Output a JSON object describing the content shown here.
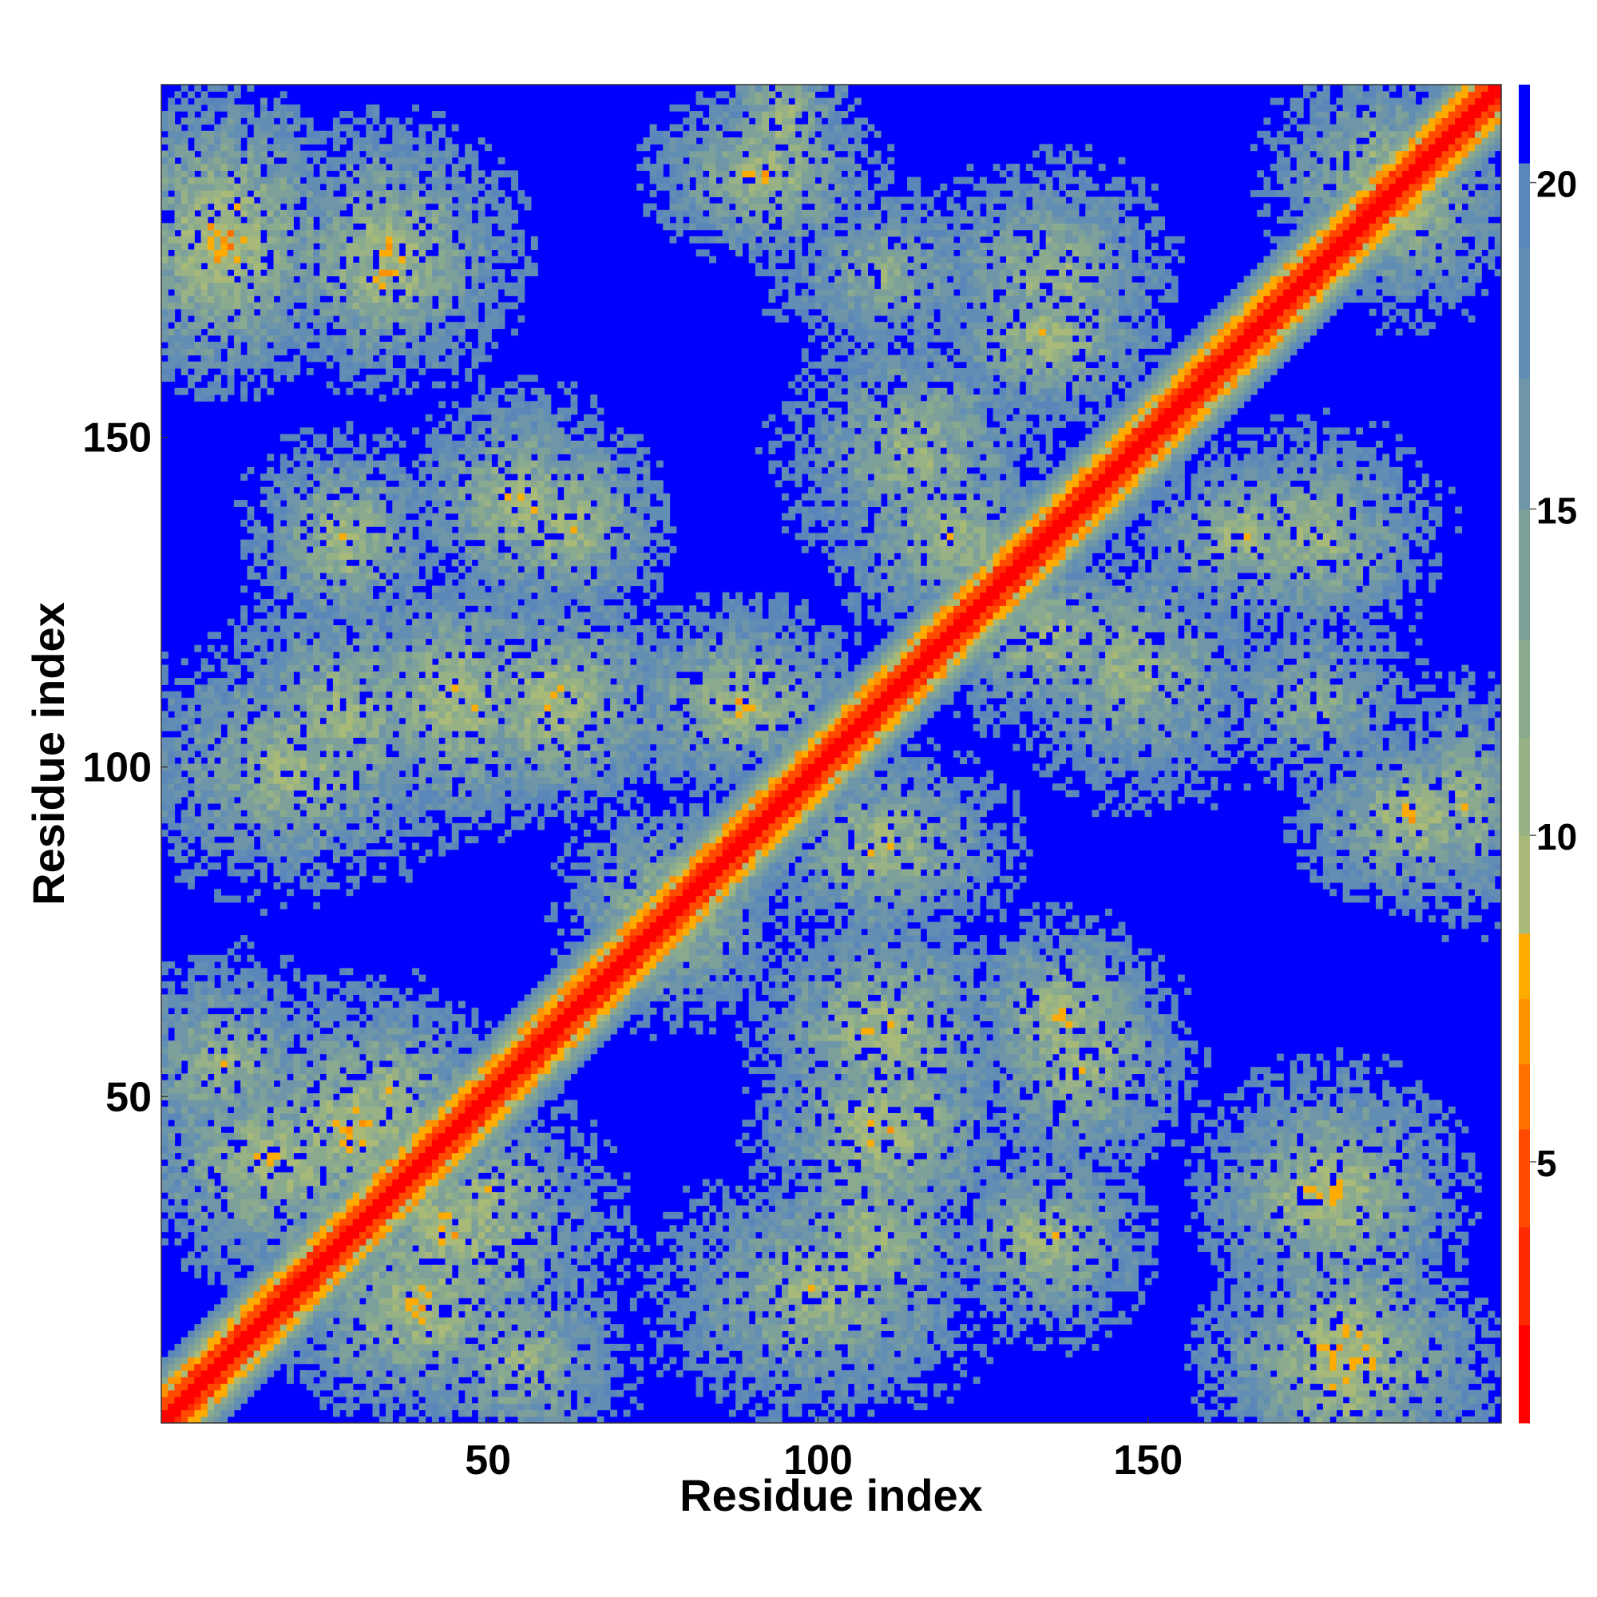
{
  "chart_data": {
    "type": "heatmap",
    "description_of_values": "pairwise residue distance map (symmetric), values capped at ~21",
    "xlabel": "Residue index",
    "ylabel": "Residue index",
    "xlim": [
      1,
      203
    ],
    "ylim": [
      1,
      203
    ],
    "x_ticks": [
      50,
      100,
      150
    ],
    "y_ticks": [
      50,
      100,
      150
    ],
    "colorbar": {
      "min": 1,
      "max": 21.5,
      "ticks": [
        5,
        10,
        15,
        20
      ],
      "bands": [
        {
          "from": 1.0,
          "to": 2.5,
          "color": "#ff0000"
        },
        {
          "from": 2.5,
          "to": 4.0,
          "color": "#ff2a00"
        },
        {
          "from": 4.0,
          "to": 5.5,
          "color": "#ff4a00"
        },
        {
          "from": 5.5,
          "to": 6.5,
          "color": "#ff7000"
        },
        {
          "from": 6.5,
          "to": 7.5,
          "color": "#ff9200"
        },
        {
          "from": 7.5,
          "to": 8.5,
          "color": "#ffab00"
        },
        {
          "from": 8.5,
          "to": 10.0,
          "color": "#a9ba78"
        },
        {
          "from": 10.0,
          "to": 11.5,
          "color": "#98b285"
        },
        {
          "from": 11.5,
          "to": 13.0,
          "color": "#89aa8e"
        },
        {
          "from": 13.0,
          "to": 15.0,
          "color": "#7ea09a"
        },
        {
          "from": 15.0,
          "to": 17.0,
          "color": "#6e96a8"
        },
        {
          "from": 17.0,
          "to": 19.0,
          "color": "#628eb4"
        },
        {
          "from": 19.0,
          "to": 20.3,
          "color": "#5a86ba"
        },
        {
          "from": 20.3,
          "to": 21.5,
          "color": "#0000ff"
        }
      ]
    },
    "contact_blocks": [
      {
        "x": 10,
        "y": 180,
        "rx": 16,
        "ry": 20,
        "min": 5.5
      },
      {
        "x": 35,
        "y": 175,
        "rx": 16,
        "ry": 14,
        "min": 6.5
      },
      {
        "x": 92,
        "y": 190,
        "rx": 16,
        "ry": 12,
        "min": 6.5
      },
      {
        "x": 28,
        "y": 133,
        "rx": 12,
        "ry": 12,
        "min": 7.0
      },
      {
        "x": 62,
        "y": 137,
        "rx": 14,
        "ry": 14,
        "min": 6.5
      },
      {
        "x": 28,
        "y": 108,
        "rx": 18,
        "ry": 20,
        "min": 7.5
      },
      {
        "x": 60,
        "y": 110,
        "rx": 18,
        "ry": 16,
        "min": 6.5
      },
      {
        "x": 135,
        "y": 165,
        "rx": 16,
        "ry": 12,
        "min": 7.0
      },
      {
        "x": 120,
        "y": 135,
        "rx": 18,
        "ry": 14,
        "min": 7.5
      },
      {
        "x": 175,
        "y": 135,
        "rx": 18,
        "ry": 16,
        "min": 7.5
      },
      {
        "x": 175,
        "y": 110,
        "rx": 18,
        "ry": 14,
        "min": 9.0
      },
      {
        "x": 198,
        "y": 95,
        "rx": 10,
        "ry": 18,
        "min": 7.5
      },
      {
        "x": 110,
        "y": 45,
        "rx": 18,
        "ry": 18,
        "min": 6.5
      },
      {
        "x": 140,
        "y": 55,
        "rx": 16,
        "ry": 16,
        "min": 7.0
      },
      {
        "x": 135,
        "y": 28,
        "rx": 14,
        "ry": 14,
        "min": 7.0
      },
      {
        "x": 178,
        "y": 35,
        "rx": 18,
        "ry": 18,
        "min": 6.5
      },
      {
        "x": 180,
        "y": 10,
        "rx": 20,
        "ry": 14,
        "min": 6.0
      },
      {
        "x": 100,
        "y": 20,
        "rx": 24,
        "ry": 18,
        "min": 7.5
      },
      {
        "x": 110,
        "y": 88,
        "rx": 18,
        "ry": 14,
        "min": 7.0
      },
      {
        "x": 78,
        "y": 78,
        "rx": 16,
        "ry": 16,
        "min": 7.0
      },
      {
        "x": 30,
        "y": 45,
        "rx": 22,
        "ry": 20,
        "min": 6.5
      },
      {
        "x": 40,
        "y": 18,
        "rx": 20,
        "ry": 16,
        "min": 6.5
      },
      {
        "x": 50,
        "y": 35,
        "rx": 16,
        "ry": 16,
        "min": 7.5
      },
      {
        "x": 10,
        "y": 55,
        "rx": 16,
        "ry": 16,
        "min": 8.0
      },
      {
        "x": 190,
        "y": 185,
        "rx": 16,
        "ry": 16,
        "min": 7.5
      },
      {
        "x": 148,
        "y": 115,
        "rx": 20,
        "ry": 20,
        "min": 8.0
      }
    ],
    "grid": false,
    "legend": "colorbar-right"
  }
}
